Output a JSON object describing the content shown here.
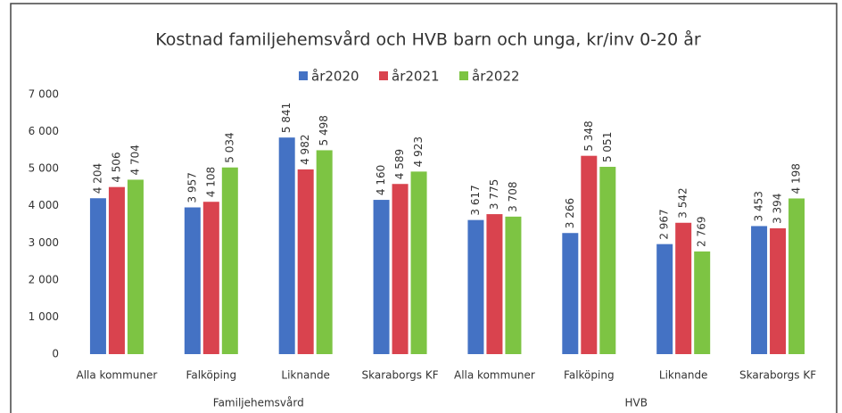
{
  "chart_data": {
    "type": "bar",
    "title": "Kostnad familjehemsvård och HVB barn och unga, kr/inv 0-20 år",
    "categories": [
      "Alla kommuner",
      "Falköping",
      "Liknande",
      "Skaraborgs KF",
      "Alla kommuner",
      "Falköping",
      "Liknande",
      "Skaraborgs KF"
    ],
    "groups": [
      "Familjehemsvård",
      "HVB"
    ],
    "series": [
      {
        "name": "år2020",
        "color": "#4472c4",
        "values": [
          4204,
          3957,
          5841,
          4160,
          3617,
          3266,
          2967,
          3453
        ],
        "value_labels": [
          "4 204",
          "3 957",
          "5 841",
          "4 160",
          "3 617",
          "3 266",
          "2 967",
          "3 453"
        ]
      },
      {
        "name": "år2021",
        "color": "#d9434e",
        "values": [
          4506,
          4108,
          4982,
          4589,
          3775,
          5348,
          3542,
          3394
        ],
        "value_labels": [
          "4 506",
          "4 108",
          "4 982",
          "4 589",
          "3 775",
          "5 348",
          "3 542",
          "3 394"
        ]
      },
      {
        "name": "år2022",
        "color": "#7dc443",
        "values": [
          4704,
          5034,
          5498,
          4923,
          3708,
          5051,
          2769,
          4198
        ],
        "value_labels": [
          "4 704",
          "5 034",
          "5 498",
          "4 923",
          "3 708",
          "5 051",
          "2 769",
          "4 198"
        ]
      }
    ],
    "ylim": [
      0,
      7000
    ],
    "yticks": [
      0,
      {
        "value": 1000,
        "label": "1 000"
      },
      {
        "value": 2000,
        "label": "2 000"
      },
      {
        "value": 3000,
        "label": "3 000"
      },
      {
        "value": 4000,
        "label": "4 000"
      },
      {
        "value": 5000,
        "label": "5 000"
      },
      {
        "value": 6000,
        "label": "6 000"
      },
      {
        "value": 7000,
        "label": "7 000"
      }
    ],
    "legend": "top"
  }
}
